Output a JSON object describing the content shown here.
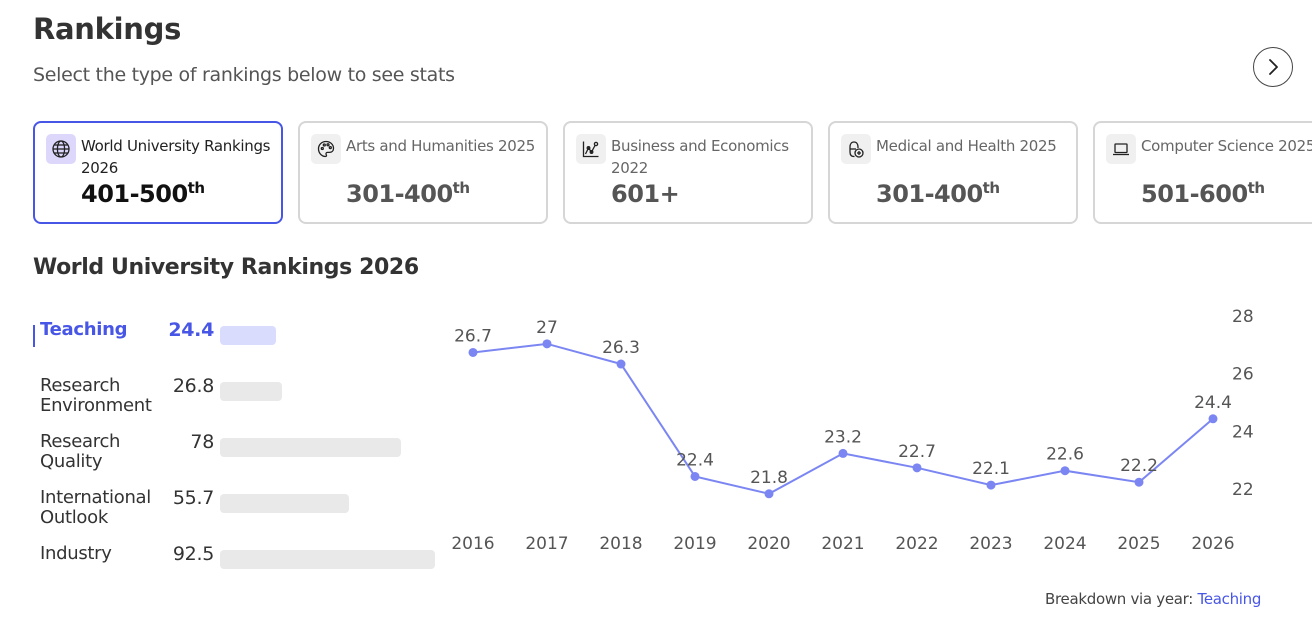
{
  "header": {
    "title": "Rankings",
    "subtitle": "Select the type of rankings below to see stats"
  },
  "nav": {
    "next_icon": "chevron-right-icon"
  },
  "cards": [
    {
      "title": "World University Rankings 2026",
      "rank": "401-500",
      "suffix": "th",
      "icon": "globe-icon",
      "active": true
    },
    {
      "title": "Arts and Humanities 2025",
      "rank": "301-400",
      "suffix": "th",
      "icon": "palette-icon",
      "active": false
    },
    {
      "title": "Business and Economics 2022",
      "rank": "601+",
      "suffix": "",
      "icon": "line-chart-icon",
      "active": false
    },
    {
      "title": "Medical and Health 2025",
      "rank": "301-400",
      "suffix": "th",
      "icon": "pill-icon",
      "active": false
    },
    {
      "title": "Computer Science 2025",
      "rank": "501-600",
      "suffix": "th",
      "icon": "laptop-icon",
      "active": false
    }
  ],
  "section": {
    "title": "World University Rankings 2026"
  },
  "pillars": [
    {
      "label": "Teaching",
      "value": "24.4",
      "active": true
    },
    {
      "label": "Research Environment",
      "value": "26.8",
      "active": false
    },
    {
      "label": "Research Quality",
      "value": "78",
      "active": false
    },
    {
      "label": "International Outlook",
      "value": "55.7",
      "active": false
    },
    {
      "label": "Industry",
      "value": "92.5",
      "active": false
    }
  ],
  "breakdown": {
    "prefix": "Breakdown via year:",
    "link": "Teaching"
  },
  "colors": {
    "accent": "#4856e6",
    "line": "#7b86f2",
    "active_bar": "#d9dcfd",
    "inactive_bar": "#e9e9e9"
  },
  "chart_data": {
    "type": "line",
    "title": "Teaching",
    "x": [
      "2016",
      "2017",
      "2018",
      "2019",
      "2020",
      "2021",
      "2022",
      "2023",
      "2024",
      "2025",
      "2026"
    ],
    "series": [
      {
        "name": "Teaching",
        "values": [
          26.7,
          27,
          26.3,
          22.4,
          21.8,
          23.2,
          22.7,
          22.1,
          22.6,
          22.2,
          24.4
        ]
      }
    ],
    "xlabel": "",
    "ylabel": "",
    "yticks": [
      22,
      24,
      26,
      28
    ],
    "ylim": [
      21,
      28
    ],
    "grid": false,
    "y_axis_position": "right",
    "data_labels": true
  }
}
